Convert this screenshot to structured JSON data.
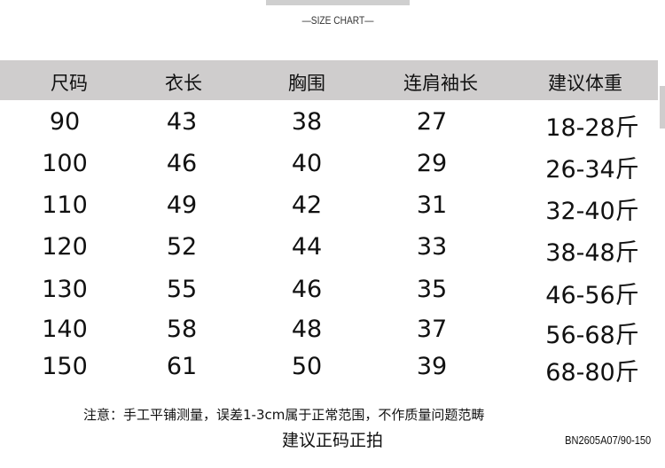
{
  "subtitle": "—SIZE CHART—",
  "headers": [
    "尺码",
    "衣长",
    "胸围",
    "连肩袖长",
    "建议体重"
  ],
  "rows": [
    [
      "90",
      "43",
      "38",
      "27",
      "18-28斤"
    ],
    [
      "100",
      "46",
      "40",
      "29",
      "26-34斤"
    ],
    [
      "110",
      "49",
      "42",
      "31",
      "32-40斤"
    ],
    [
      "120",
      "52",
      "44",
      "33",
      "38-48斤"
    ],
    [
      "130",
      "55",
      "46",
      "35",
      "46-56斤"
    ],
    [
      "140",
      "58",
      "48",
      "37",
      "56-68斤"
    ],
    [
      "150",
      "61",
      "50",
      "39",
      "68-80斤"
    ]
  ],
  "note": "注意：手工平铺测量，误差1-3cm属于正常范围，不作质量问题范畴",
  "advice": "建议正码正拍",
  "product_code": "BN2605A07/90-150",
  "colors": {
    "header_bg": "#cfcdcd",
    "text": "#111111"
  }
}
